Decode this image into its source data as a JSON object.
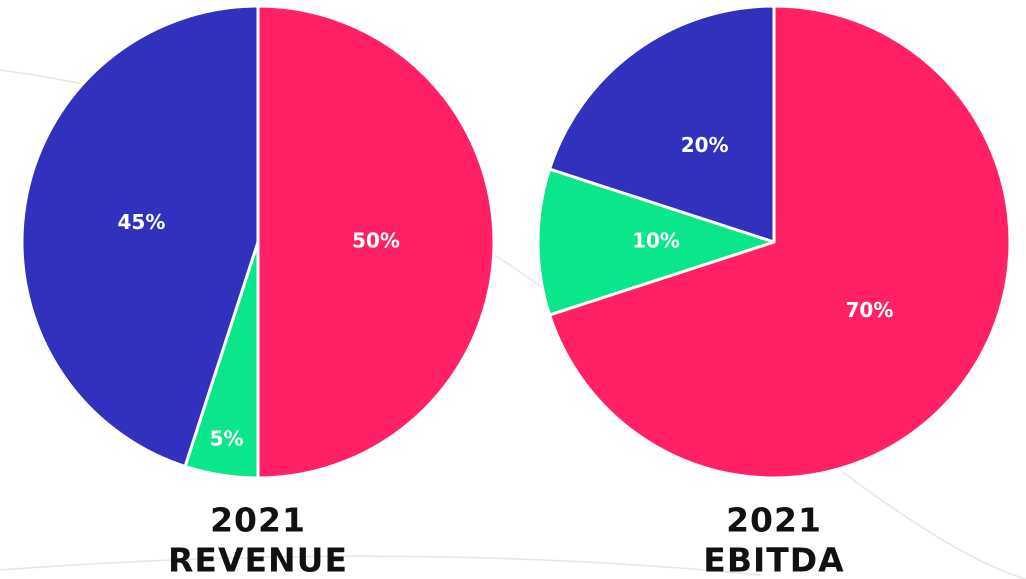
{
  "chart_data": [
    {
      "type": "pie",
      "title": [
        "2021",
        "REVENUE"
      ],
      "values": [
        50,
        5,
        45
      ],
      "value_labels": [
        "50%",
        "5%",
        "45%"
      ],
      "colors": [
        "#ff2163",
        "#0ae68a",
        "#3131bd"
      ]
    },
    {
      "type": "pie",
      "title": [
        "2021",
        "EBITDA"
      ],
      "values": [
        70,
        10,
        20
      ],
      "value_labels": [
        "70%",
        "10%",
        "20%"
      ],
      "colors": [
        "#ff2163",
        "#0ae68a",
        "#3131bd"
      ]
    }
  ]
}
